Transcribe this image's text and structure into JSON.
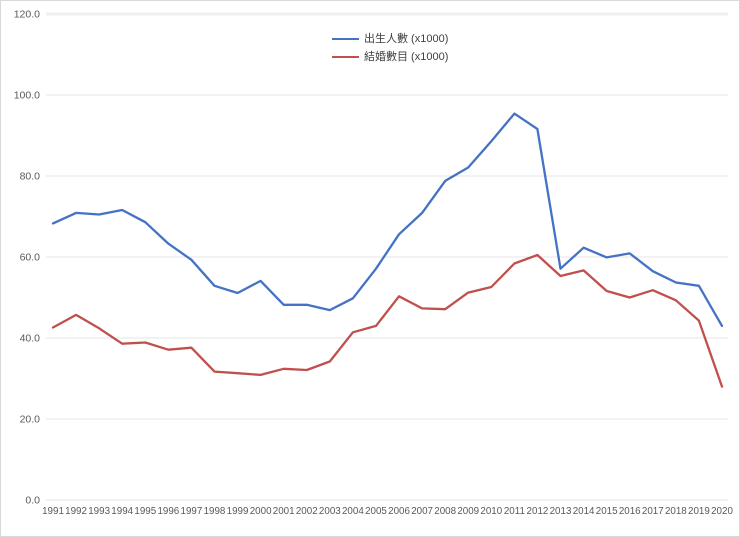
{
  "chart": {
    "title": "",
    "legend_items": [
      {
        "label": "出生人數 (x1000)",
        "color": "#4472C4",
        "icon": "line-swatch-blue"
      },
      {
        "label": "結婚數目 (x1000)",
        "color": "#C0504D",
        "icon": "line-swatch-red"
      }
    ],
    "axis_color": "#595959",
    "gridline_color": "#e4e4e4",
    "top_gridline_color": "#efefef",
    "background": "#ffffff"
  },
  "chart_data": {
    "type": "line",
    "title": "",
    "xlabel": "",
    "ylabel": "",
    "x": [
      "1991",
      "1992",
      "1993",
      "1994",
      "1995",
      "1996",
      "1997",
      "1998",
      "1999",
      "2000",
      "2001",
      "2002",
      "2003",
      "2004",
      "2005",
      "2006",
      "2007",
      "2008",
      "2009",
      "2010",
      "2011",
      "2012",
      "2013",
      "2014",
      "2015",
      "2016",
      "2017",
      "2018",
      "2019",
      "2020"
    ],
    "series": [
      {
        "name": "出生人數 (x1000)",
        "color": "#4472C4",
        "values": [
          68.3,
          70.9,
          70.5,
          71.6,
          68.6,
          63.3,
          59.3,
          52.9,
          51.1,
          54.1,
          48.2,
          48.2,
          46.9,
          49.8,
          57.1,
          65.6,
          70.9,
          78.8,
          82.1,
          88.6,
          95.4,
          91.6,
          57.1,
          62.3,
          59.9,
          60.9,
          56.5,
          53.7,
          52.9,
          43.0
        ]
      },
      {
        "name": "結婚數目 (x1000)",
        "color": "#C0504D",
        "values": [
          42.6,
          45.7,
          42.4,
          38.6,
          38.9,
          37.1,
          37.6,
          31.7,
          31.3,
          30.9,
          32.4,
          32.1,
          34.2,
          41.4,
          43.0,
          50.3,
          47.3,
          47.1,
          51.2,
          52.6,
          58.4,
          60.5,
          55.3,
          56.7,
          51.6,
          50.0,
          51.8,
          49.3,
          44.3,
          28.0
        ]
      }
    ],
    "ylim": [
      0,
      120
    ],
    "yticks": [
      0,
      20,
      40,
      60,
      80,
      100,
      120
    ],
    "ytick_labels": [
      "0.0",
      "20.0",
      "40.0",
      "60.0",
      "80.0",
      "100.0",
      "120.0"
    ],
    "grid": "horizontal",
    "legend_position": "top-center"
  }
}
